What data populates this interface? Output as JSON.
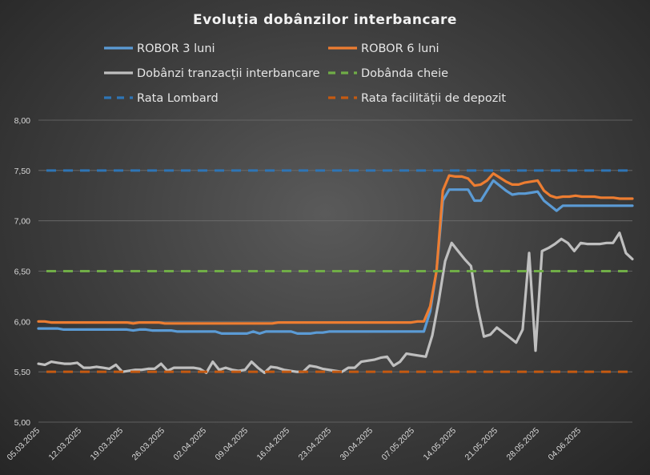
{
  "chart_data": {
    "type": "line",
    "title": "Evoluția  dobânzilor  interbancare",
    "xlabel": "",
    "ylabel": "",
    "ylim": [
      5.0,
      8.0
    ],
    "yticks": [
      "5,00",
      "5,50",
      "6,00",
      "6,50",
      "7,00",
      "7,50",
      "8,00"
    ],
    "xticks": [
      "05.03.2025",
      "12.03.2025",
      "19.03.2025",
      "26.03.2025",
      "02.04.2025",
      "09.04.2025",
      "16.04.2025",
      "23.04.2025",
      "30.04.2025",
      "07.05.2025",
      "14.05.2025",
      "21.05.2025",
      "28.05.2025",
      "04.06.2025"
    ],
    "grid": true,
    "legend_position": "top",
    "x_start": "05.03.2025",
    "series": [
      {
        "name": "ROBOR 3 luni",
        "color": "#5b9bd5",
        "style": "solid",
        "values": [
          5.93,
          5.93,
          5.93,
          5.93,
          5.92,
          5.92,
          5.92,
          5.92,
          5.92,
          5.92,
          5.92,
          5.92,
          5.92,
          5.92,
          5.92,
          5.91,
          5.92,
          5.92,
          5.91,
          5.91,
          5.91,
          5.91,
          5.9,
          5.9,
          5.9,
          5.9,
          5.9,
          5.9,
          5.9,
          5.88,
          5.88,
          5.88,
          5.88,
          5.88,
          5.9,
          5.88,
          5.9,
          5.9,
          5.9,
          5.9,
          5.9,
          5.88,
          5.88,
          5.88,
          5.89,
          5.89,
          5.9,
          5.9,
          5.9,
          5.9,
          5.9,
          5.9,
          5.9,
          5.9,
          5.9,
          5.9,
          5.9,
          5.9,
          5.9,
          5.9,
          5.9,
          5.9,
          6.1,
          6.5,
          7.2,
          7.31,
          7.31,
          7.31,
          7.31,
          7.2,
          7.2,
          7.3,
          7.4,
          7.35,
          7.3,
          7.26,
          7.27,
          7.27,
          7.28,
          7.29,
          7.2,
          7.15,
          7.1,
          7.15,
          7.15,
          7.15,
          7.15,
          7.15,
          7.15,
          7.15,
          7.15,
          7.15,
          7.15,
          7.15,
          7.15
        ]
      },
      {
        "name": "ROBOR 6 luni",
        "color": "#ed7d31",
        "style": "solid",
        "values": [
          6.0,
          6.0,
          5.99,
          5.99,
          5.99,
          5.99,
          5.99,
          5.99,
          5.99,
          5.99,
          5.99,
          5.99,
          5.99,
          5.99,
          5.99,
          5.98,
          5.99,
          5.99,
          5.99,
          5.99,
          5.98,
          5.98,
          5.98,
          5.98,
          5.98,
          5.98,
          5.98,
          5.98,
          5.98,
          5.98,
          5.98,
          5.98,
          5.98,
          5.98,
          5.98,
          5.98,
          5.98,
          5.98,
          5.99,
          5.99,
          5.99,
          5.99,
          5.99,
          5.99,
          5.99,
          5.99,
          5.99,
          5.99,
          5.99,
          5.99,
          5.99,
          5.99,
          5.99,
          5.99,
          5.99,
          5.99,
          5.99,
          5.99,
          5.99,
          5.99,
          6.0,
          6.0,
          6.15,
          6.5,
          7.3,
          7.45,
          7.44,
          7.44,
          7.42,
          7.35,
          7.36,
          7.4,
          7.47,
          7.43,
          7.39,
          7.36,
          7.36,
          7.38,
          7.39,
          7.4,
          7.3,
          7.25,
          7.23,
          7.24,
          7.24,
          7.25,
          7.24,
          7.24,
          7.24,
          7.23,
          7.23,
          7.23,
          7.22,
          7.22,
          7.22
        ]
      },
      {
        "name": "Dobânzi tranzacții interbancare",
        "color": "#bfbfbf",
        "style": "solid",
        "values": [
          5.58,
          5.57,
          5.6,
          5.59,
          5.58,
          5.58,
          5.59,
          5.54,
          5.54,
          5.55,
          5.54,
          5.53,
          5.57,
          5.5,
          5.51,
          5.52,
          5.52,
          5.53,
          5.53,
          5.58,
          5.51,
          5.54,
          5.54,
          5.54,
          5.54,
          5.53,
          5.49,
          5.6,
          5.52,
          5.54,
          5.52,
          5.51,
          5.52,
          5.6,
          5.54,
          5.49,
          5.55,
          5.54,
          5.52,
          5.51,
          5.5,
          5.5,
          5.56,
          5.55,
          5.53,
          5.52,
          5.51,
          5.5,
          5.54,
          5.54,
          5.6,
          5.61,
          5.62,
          5.64,
          5.65,
          5.56,
          5.6,
          5.68,
          5.67,
          5.66,
          5.65,
          5.86,
          6.2,
          6.6,
          6.78,
          6.7,
          6.62,
          6.55,
          6.15,
          5.85,
          5.87,
          5.94,
          5.89,
          5.84,
          5.79,
          5.92,
          6.68,
          5.71,
          6.7,
          6.73,
          6.77,
          6.82,
          6.78,
          6.7,
          6.78,
          6.77,
          6.77,
          6.77,
          6.78,
          6.78,
          6.88,
          6.68,
          6.62
        ]
      },
      {
        "name": "Dobânda cheie",
        "color": "#70ad47",
        "style": "dashed",
        "values": [
          6.5,
          6.5
        ]
      },
      {
        "name": "Rata Lombard",
        "color": "#2e75b6",
        "style": "dashed",
        "values": [
          7.5,
          7.5
        ]
      },
      {
        "name": "Rata facilității de depozit",
        "color": "#c55a11",
        "style": "dashed",
        "values": [
          5.5,
          5.5
        ]
      }
    ]
  }
}
